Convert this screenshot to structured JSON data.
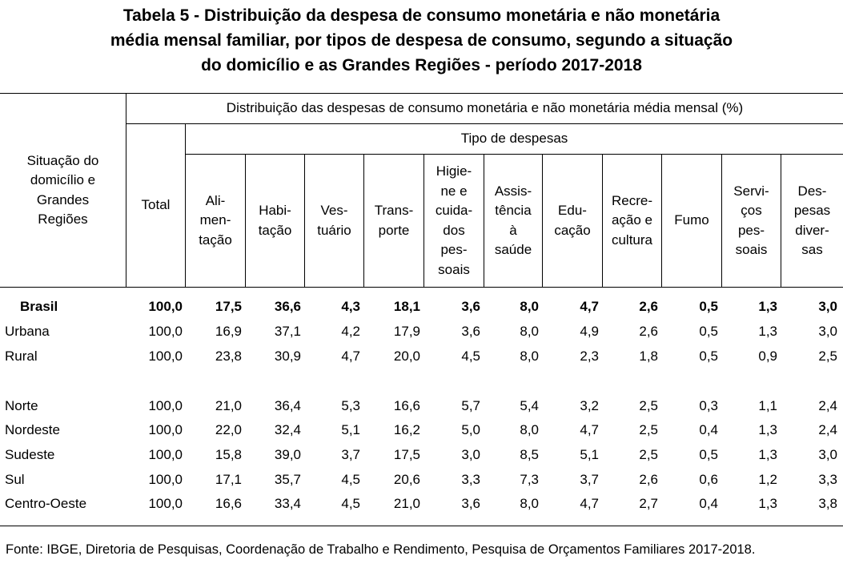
{
  "title": {
    "lines": [
      "Tabela  5 - Distribuição da despesa de consumo monetária e não monetária",
      "média mensal familiar, por tipos de despesa de consumo, segundo a situação",
      "do domicílio e as Grandes Regiões - período 2017-2018"
    ]
  },
  "header": {
    "stub": "Situação do\ndomicílio e\nGrandes\nRegiões",
    "group": "Distribuição das despesas de consumo monetária e não monetária média mensal (%)",
    "total": "Total",
    "subgroup": "Tipo de despesas",
    "columns": [
      "Ali-\nmen-\ntação",
      "Habi-\ntação",
      "Ves-\ntuário",
      "Trans-\nporte",
      "Higie-\nne e\ncuida-\ndos\npes-\nsoais",
      "Assis-\ntência\nà\nsaúde",
      "Edu-\ncação",
      "Recre-\nação e\ncultura",
      "Fumo",
      "Servi-\nços\npes-\nsoais",
      "Des-\npesas\ndiver-\nsas"
    ]
  },
  "rows": [
    {
      "label": "Brasil",
      "values": [
        "100,0",
        "17,5",
        "36,6",
        "4,3",
        "18,1",
        "3,6",
        "8,0",
        "4,7",
        "2,6",
        "0,5",
        "1,3",
        "3,0"
      ]
    },
    {
      "label": "Urbana",
      "values": [
        "100,0",
        "16,9",
        "37,1",
        "4,2",
        "17,9",
        "3,6",
        "8,0",
        "4,9",
        "2,6",
        "0,5",
        "1,3",
        "3,0"
      ]
    },
    {
      "label": "Rural",
      "values": [
        "100,0",
        "23,8",
        "30,9",
        "4,7",
        "20,0",
        "4,5",
        "8,0",
        "2,3",
        "1,8",
        "0,5",
        "0,9",
        "2,5"
      ]
    },
    {
      "label": "Norte",
      "values": [
        "100,0",
        "21,0",
        "36,4",
        "5,3",
        "16,6",
        "5,7",
        "5,4",
        "3,2",
        "2,5",
        "0,3",
        "1,1",
        "2,4"
      ]
    },
    {
      "label": "Nordeste",
      "values": [
        "100,0",
        "22,0",
        "32,4",
        "5,1",
        "16,2",
        "5,0",
        "8,0",
        "4,7",
        "2,5",
        "0,4",
        "1,3",
        "2,4"
      ]
    },
    {
      "label": "Sudeste",
      "values": [
        "100,0",
        "15,8",
        "39,0",
        "3,7",
        "17,5",
        "3,0",
        "8,5",
        "5,1",
        "2,5",
        "0,5",
        "1,3",
        "3,0"
      ]
    },
    {
      "label": "Sul",
      "values": [
        "100,0",
        "17,1",
        "35,7",
        "4,5",
        "20,6",
        "3,3",
        "7,3",
        "3,7",
        "2,6",
        "0,6",
        "1,2",
        "3,3"
      ]
    },
    {
      "label": "Centro-Oeste",
      "values": [
        "100,0",
        "16,6",
        "33,4",
        "4,5",
        "21,0",
        "3,6",
        "8,0",
        "4,7",
        "2,7",
        "0,4",
        "1,3",
        "3,8"
      ]
    }
  ],
  "source": {
    "text": "Fonte: IBGE, Diretoria de Pesquisas, Coordenação de Trabalho e Rendimento, Pesquisa de Orçamentos Familiares 2017-2018."
  }
}
